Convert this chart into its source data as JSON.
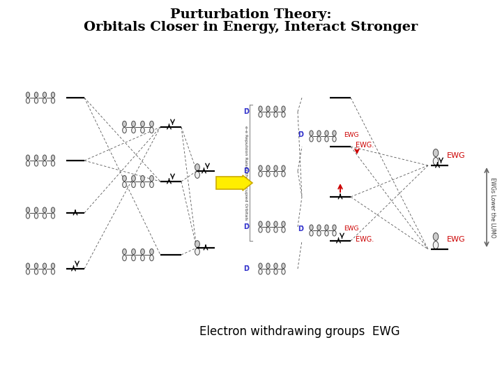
{
  "title_line1": "Purturbation Theory:",
  "title_line2": "Orbitals Closer in Energy, Interact Stronger",
  "subtitle": "Electron withdrawing groups  EWG",
  "bg_color": "#ffffff",
  "ewg_color": "#cc0000",
  "donor_color": "#3333cc",
  "arrow_yellow": "#ffee00",
  "arrow_yellow_edge": "#ccaa00",
  "side_text": "EWGs Lower the LUMO",
  "repulsion_text": "e-e Repulsion Raises the Occupied Orbitals"
}
